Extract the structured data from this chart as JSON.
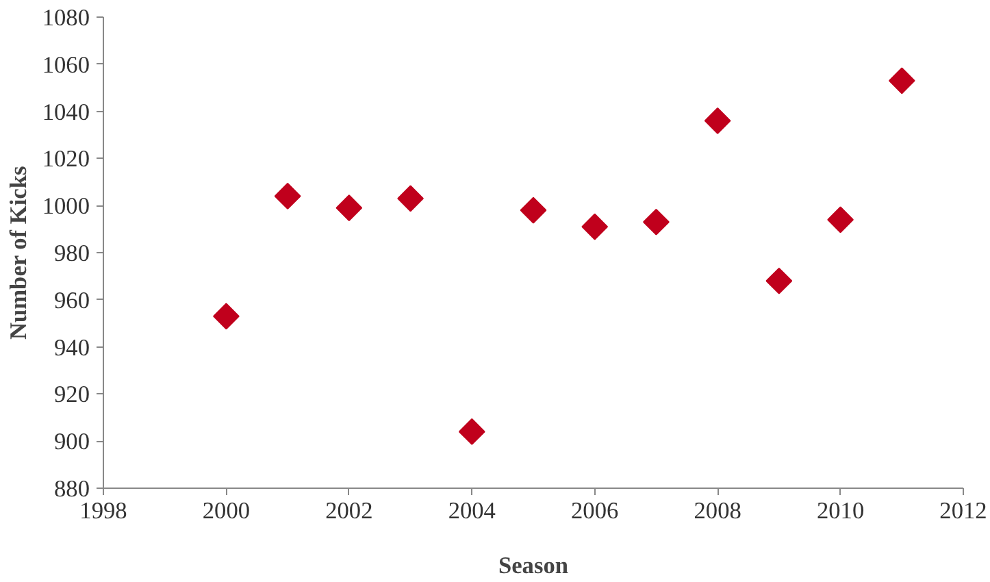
{
  "chart_data": {
    "type": "scatter",
    "xlabel": "Season",
    "ylabel": "Number of Kicks",
    "x": [
      2000,
      2001,
      2002,
      2003,
      2004,
      2005,
      2006,
      2007,
      2008,
      2009,
      2010,
      2011
    ],
    "series": [
      {
        "color": "#c0001c",
        "values": [
          953,
          1004,
          999,
          1003,
          904,
          998,
          991,
          993,
          1036,
          968,
          994,
          1053
        ]
      }
    ],
    "xlim": [
      1998,
      2012
    ],
    "xticks": [
      1998,
      2000,
      2002,
      2004,
      2006,
      2008,
      2010,
      2012
    ],
    "ylim": [
      880,
      1080
    ],
    "yticks": [
      880,
      900,
      920,
      940,
      960,
      980,
      1000,
      1020,
      1040,
      1060,
      1080
    ],
    "marker": "diamond"
  }
}
